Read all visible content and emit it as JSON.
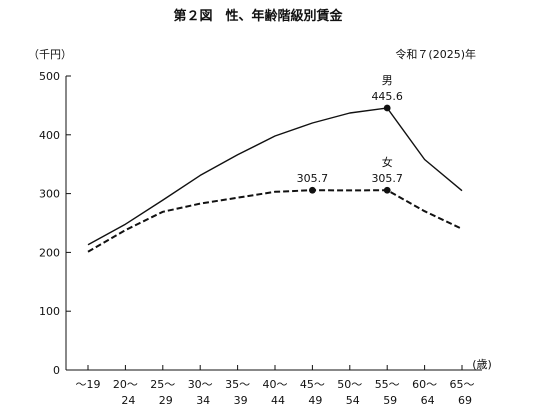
{
  "chart_data": {
    "type": "line",
    "title": "第２図　性、年齢階級別賃金",
    "subtitle": "令和７(2025)年",
    "ylabel": "（千円）",
    "xlabel": "(歳)",
    "ylim": [
      0,
      500
    ],
    "yticks": [
      "0",
      "100",
      "200",
      "300",
      "400",
      "500"
    ],
    "categories": [
      {
        "top": "～19",
        "bottom": ""
      },
      {
        "top": "20～",
        "bottom": "24"
      },
      {
        "top": "25～",
        "bottom": "29"
      },
      {
        "top": "30～",
        "bottom": "34"
      },
      {
        "top": "35～",
        "bottom": "39"
      },
      {
        "top": "40～",
        "bottom": "44"
      },
      {
        "top": "45～",
        "bottom": "49"
      },
      {
        "top": "50～",
        "bottom": "54"
      },
      {
        "top": "55～",
        "bottom": "59"
      },
      {
        "top": "60～",
        "bottom": "64"
      },
      {
        "top": "65～",
        "bottom": "69"
      }
    ],
    "series": [
      {
        "name": "男",
        "style": "solid",
        "values": [
          213,
          248,
          289,
          331,
          366,
          398,
          420,
          437,
          445.6,
          358,
          305
        ]
      },
      {
        "name": "女",
        "style": "dashed",
        "values": [
          201,
          238,
          269,
          283,
          293,
          303,
          305.7,
          305.5,
          305.7,
          270,
          240
        ]
      }
    ],
    "annotations": [
      {
        "series": 0,
        "index": 8,
        "text": "445.6"
      },
      {
        "series": 1,
        "index": 6,
        "text": "305.7"
      },
      {
        "series": 1,
        "index": 8,
        "text": "305.7"
      }
    ],
    "grid": false
  }
}
